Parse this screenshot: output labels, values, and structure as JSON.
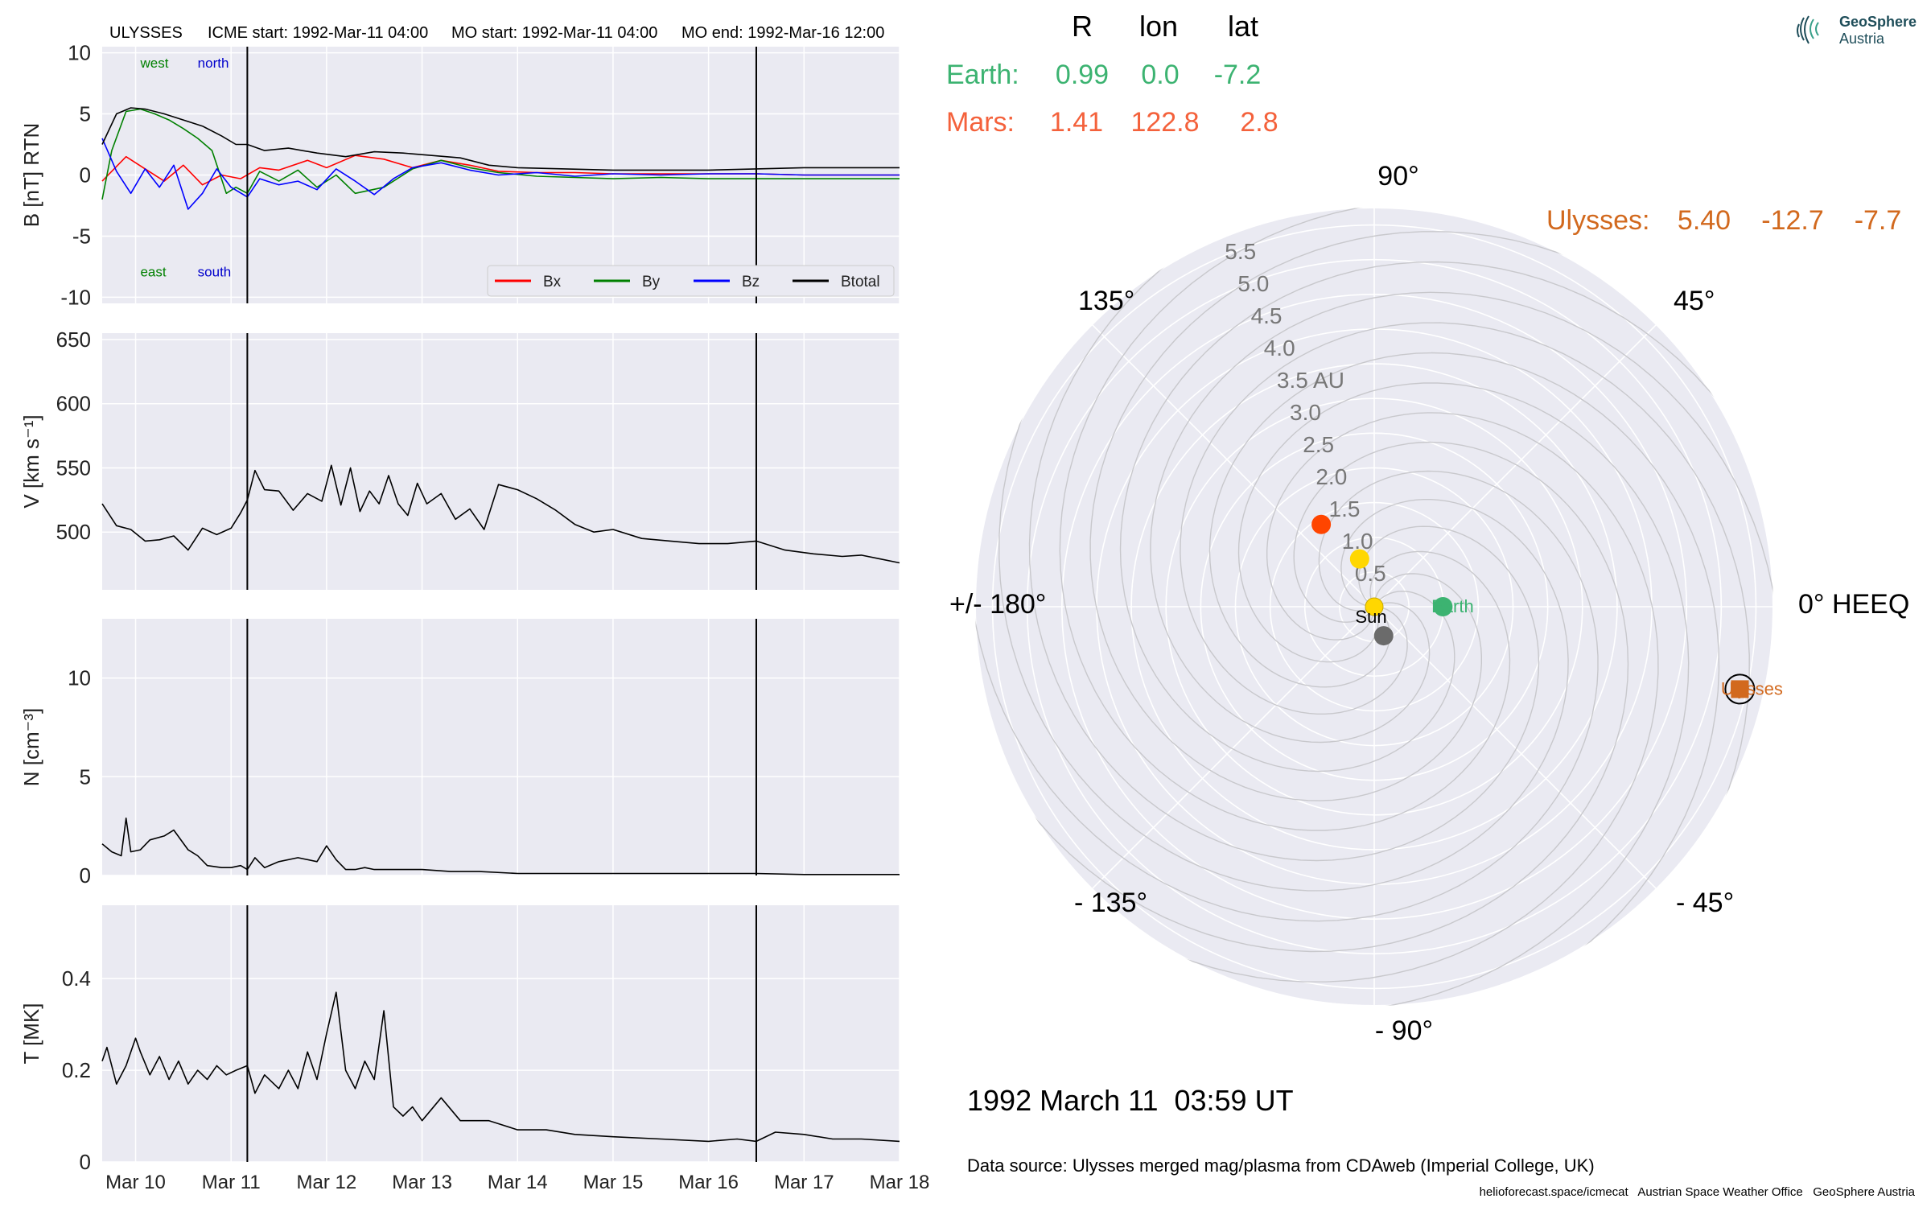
{
  "header": {
    "spacecraft": "ULYSSES",
    "icme_start": "ICME start: 1992-Mar-11 04:00",
    "mo_start": "MO start: 1992-Mar-11 04:00",
    "mo_end": "MO end: 1992-Mar-16 12:00"
  },
  "logo": {
    "line1": "GeoSphere",
    "line2": "Austria",
    "icon": "geosphere-logo-icon"
  },
  "table": {
    "col_r": "R",
    "col_lon": "lon",
    "col_lat": "lat",
    "rows": [
      {
        "name": "Earth:",
        "r": "0.99",
        "lon": "0.0",
        "lat": "-7.2",
        "color": "#3cb371"
      },
      {
        "name": "Mars:",
        "r": "1.41",
        "lon": "122.8",
        "lat": "2.8",
        "color": "#f4613b"
      }
    ],
    "ulysses": {
      "name": "Ulysses:",
      "r": "5.40",
      "lon": "-12.7",
      "lat": "-7.7",
      "color": "#d2691e"
    }
  },
  "date_text": "1992 March 11  03:59 UT",
  "source_text": "Data source: Ulysses merged mag/plasma from CDAweb (Imperial College, UK)",
  "footer_text": "helioforecast.space/icmecat   Austrian Space Weather Office   GeoSphere Austria",
  "chart_data": [
    {
      "type": "line",
      "ylabel": "B [nT] RTN",
      "ylim": [
        -10.5,
        10.5
      ],
      "yticks": [
        10,
        5,
        0,
        -5,
        -10
      ],
      "xlim": [
        9.65,
        18.0
      ],
      "xticks": [
        {
          "v": 10,
          "l": "Mar 10"
        },
        {
          "v": 11,
          "l": "Mar 11"
        },
        {
          "v": 12,
          "l": "Mar 12"
        },
        {
          "v": 13,
          "l": "Mar 13"
        },
        {
          "v": 14,
          "l": "Mar 14"
        },
        {
          "v": 15,
          "l": "Mar 15"
        },
        {
          "v": 16,
          "l": "Mar 16"
        },
        {
          "v": 17,
          "l": "Mar 17"
        },
        {
          "v": 18,
          "l": "Mar 18"
        }
      ],
      "vlines": [
        11.17,
        16.5
      ],
      "annotations": [
        {
          "text": "west",
          "color": "#008000",
          "x": 10.05,
          "y": 8.8
        },
        {
          "text": "north",
          "color": "#0000cc",
          "x": 10.65,
          "y": 8.8
        },
        {
          "text": "east",
          "color": "#008000",
          "x": 10.05,
          "y": -8.3
        },
        {
          "text": "south",
          "color": "#0000cc",
          "x": 10.65,
          "y": -8.3
        }
      ],
      "legend": "lower right",
      "series": [
        {
          "name": "Bx",
          "color": "#ff0000",
          "x": [
            9.65,
            9.9,
            10.1,
            10.3,
            10.5,
            10.7,
            10.9,
            11.1,
            11.3,
            11.5,
            11.8,
            12.0,
            12.3,
            12.6,
            12.9,
            13.2,
            13.5,
            13.8,
            14.2,
            14.6,
            15.0,
            15.5,
            16.0,
            16.5,
            17.0,
            17.5,
            18.0
          ],
          "y": [
            -0.5,
            1.5,
            0.5,
            -0.5,
            0.8,
            -0.8,
            0.0,
            -0.3,
            0.6,
            0.4,
            1.2,
            0.6,
            1.6,
            1.3,
            0.6,
            1.2,
            0.8,
            0.3,
            0.2,
            0.2,
            0.1,
            0.1,
            0.1,
            0.1,
            0.0,
            0.0,
            0.0
          ]
        },
        {
          "name": "By",
          "color": "#008000",
          "x": [
            9.65,
            9.75,
            9.9,
            10.05,
            10.2,
            10.35,
            10.5,
            10.65,
            10.8,
            10.95,
            11.05,
            11.17,
            11.3,
            11.5,
            11.7,
            11.9,
            12.1,
            12.3,
            12.6,
            12.9,
            13.2,
            13.5,
            13.8,
            14.2,
            14.6,
            15.0,
            15.5,
            16.0,
            16.5,
            17.0,
            17.5,
            18.0
          ],
          "y": [
            -2.0,
            2.0,
            5.2,
            5.4,
            5.0,
            4.5,
            3.8,
            3.0,
            2.0,
            -1.5,
            -1.0,
            -1.5,
            0.3,
            -0.5,
            0.4,
            -1.0,
            0.0,
            -1.5,
            -1.0,
            0.5,
            1.2,
            0.6,
            0.2,
            -0.1,
            -0.2,
            -0.3,
            -0.2,
            -0.3,
            -0.3,
            -0.3,
            -0.3,
            -0.3
          ]
        },
        {
          "name": "Bz",
          "color": "#0000ff",
          "x": [
            9.65,
            9.8,
            9.95,
            10.1,
            10.25,
            10.4,
            10.55,
            10.7,
            10.85,
            11.0,
            11.17,
            11.3,
            11.5,
            11.7,
            11.9,
            12.1,
            12.3,
            12.5,
            12.7,
            12.9,
            13.2,
            13.5,
            13.8,
            14.2,
            14.6,
            15.0,
            15.5,
            16.0,
            16.5,
            17.0,
            17.5,
            18.0
          ],
          "y": [
            3.0,
            0.3,
            -1.5,
            0.5,
            -1.0,
            0.8,
            -2.8,
            -1.5,
            0.5,
            -1.0,
            -1.8,
            -0.3,
            -0.8,
            -0.5,
            -1.2,
            0.5,
            -0.5,
            -1.6,
            -0.3,
            0.6,
            1.0,
            0.4,
            0.0,
            0.2,
            -0.1,
            0.1,
            0.0,
            0.1,
            0.1,
            0.0,
            0.0,
            0.0
          ]
        },
        {
          "name": "Btotal",
          "color": "#000000",
          "x": [
            9.65,
            9.8,
            9.95,
            10.1,
            10.3,
            10.5,
            10.7,
            10.9,
            11.05,
            11.17,
            11.35,
            11.6,
            11.9,
            12.2,
            12.5,
            12.8,
            13.1,
            13.4,
            13.7,
            14.0,
            14.5,
            15.0,
            15.5,
            16.0,
            16.5,
            17.0,
            17.5,
            18.0
          ],
          "y": [
            2.5,
            5.0,
            5.5,
            5.4,
            5.0,
            4.5,
            4.0,
            3.2,
            2.5,
            2.5,
            2.0,
            2.2,
            1.8,
            1.5,
            1.9,
            1.8,
            1.6,
            1.4,
            0.8,
            0.6,
            0.5,
            0.4,
            0.4,
            0.4,
            0.5,
            0.6,
            0.6,
            0.6
          ]
        }
      ]
    },
    {
      "type": "line",
      "ylabel": "V [km s⁻¹]",
      "ylim": [
        455,
        655
      ],
      "yticks": [
        650,
        600,
        550,
        500
      ],
      "xlim": [
        9.65,
        18.0
      ],
      "vlines": [
        11.17,
        16.5
      ],
      "series": [
        {
          "name": "",
          "color": "#000000",
          "x": [
            9.65,
            9.8,
            9.95,
            10.1,
            10.25,
            10.4,
            10.55,
            10.7,
            10.85,
            11.0,
            11.1,
            11.17,
            11.25,
            11.35,
            11.5,
            11.65,
            11.8,
            11.95,
            12.05,
            12.15,
            12.25,
            12.35,
            12.45,
            12.55,
            12.65,
            12.75,
            12.85,
            12.95,
            13.05,
            13.2,
            13.35,
            13.5,
            13.65,
            13.8,
            14.0,
            14.2,
            14.4,
            14.6,
            14.8,
            15.0,
            15.3,
            15.6,
            15.9,
            16.2,
            16.5,
            16.8,
            17.1,
            17.4,
            17.6,
            17.8,
            18.0
          ],
          "y": [
            522,
            505,
            502,
            493,
            494,
            497,
            486,
            503,
            498,
            503,
            515,
            525,
            548,
            533,
            532,
            517,
            530,
            524,
            552,
            521,
            550,
            516,
            532,
            522,
            544,
            522,
            513,
            538,
            522,
            530,
            510,
            518,
            502,
            537,
            533,
            526,
            517,
            506,
            500,
            502,
            495,
            493,
            491,
            491,
            493,
            486,
            483,
            481,
            482,
            479,
            476
          ]
        }
      ]
    },
    {
      "type": "line",
      "ylabel": "N [cm⁻³]",
      "ylim": [
        0,
        13
      ],
      "yticks": [
        10,
        5,
        0
      ],
      "xlim": [
        9.65,
        18.0
      ],
      "vlines": [
        11.17,
        16.5
      ],
      "series": [
        {
          "name": "",
          "color": "#000000",
          "x": [
            9.65,
            9.75,
            9.85,
            9.9,
            9.95,
            10.05,
            10.15,
            10.3,
            10.4,
            10.55,
            10.65,
            10.75,
            10.9,
            11.0,
            11.1,
            11.17,
            11.25,
            11.35,
            11.5,
            11.7,
            11.9,
            12.0,
            12.1,
            12.2,
            12.3,
            12.4,
            12.5,
            12.7,
            13.0,
            13.3,
            13.6,
            14.0,
            14.5,
            15.0,
            15.5,
            16.0,
            16.5,
            17.0,
            17.5,
            18.0
          ],
          "y": [
            1.6,
            1.2,
            1.0,
            2.9,
            1.2,
            1.3,
            1.8,
            2.0,
            2.3,
            1.3,
            1.0,
            0.5,
            0.4,
            0.4,
            0.5,
            0.3,
            0.9,
            0.4,
            0.7,
            0.9,
            0.7,
            1.5,
            0.8,
            0.3,
            0.3,
            0.4,
            0.3,
            0.3,
            0.3,
            0.2,
            0.2,
            0.1,
            0.1,
            0.1,
            0.1,
            0.1,
            0.1,
            0.05,
            0.05,
            0.05
          ]
        }
      ]
    },
    {
      "type": "line",
      "ylabel": "T [MK]",
      "ylim": [
        0,
        0.56
      ],
      "yticks": [
        0.4,
        0.2,
        0.0
      ],
      "xlim": [
        9.65,
        18.0
      ],
      "vlines": [
        11.17,
        16.5
      ],
      "xticks": [
        {
          "v": 10,
          "l": "Mar 10"
        },
        {
          "v": 11,
          "l": "Mar 11"
        },
        {
          "v": 12,
          "l": "Mar 12"
        },
        {
          "v": 13,
          "l": "Mar 13"
        },
        {
          "v": 14,
          "l": "Mar 14"
        },
        {
          "v": 15,
          "l": "Mar 15"
        },
        {
          "v": 16,
          "l": "Mar 16"
        },
        {
          "v": 17,
          "l": "Mar 17"
        },
        {
          "v": 18,
          "l": "Mar 18"
        }
      ],
      "series": [
        {
          "name": "",
          "color": "#000000",
          "x": [
            9.65,
            9.7,
            9.8,
            9.9,
            10.0,
            10.05,
            10.15,
            10.25,
            10.35,
            10.45,
            10.55,
            10.65,
            10.75,
            10.85,
            10.95,
            11.05,
            11.17,
            11.25,
            11.35,
            11.5,
            11.6,
            11.7,
            11.8,
            11.9,
            12.0,
            12.1,
            12.2,
            12.3,
            12.4,
            12.5,
            12.6,
            12.7,
            12.8,
            12.9,
            13.0,
            13.2,
            13.4,
            13.7,
            14.0,
            14.3,
            14.6,
            15.0,
            15.5,
            16.0,
            16.3,
            16.5,
            16.7,
            17.0,
            17.3,
            17.6,
            18.0
          ],
          "y": [
            0.22,
            0.25,
            0.17,
            0.21,
            0.27,
            0.24,
            0.19,
            0.23,
            0.18,
            0.22,
            0.17,
            0.2,
            0.18,
            0.21,
            0.19,
            0.2,
            0.21,
            0.15,
            0.19,
            0.16,
            0.2,
            0.16,
            0.24,
            0.18,
            0.28,
            0.37,
            0.2,
            0.16,
            0.22,
            0.18,
            0.33,
            0.12,
            0.1,
            0.12,
            0.09,
            0.14,
            0.09,
            0.09,
            0.07,
            0.07,
            0.06,
            0.055,
            0.05,
            0.045,
            0.05,
            0.045,
            0.065,
            0.06,
            0.05,
            0.05,
            0.045
          ]
        }
      ]
    },
    {
      "type": "scatter",
      "projection": "polar",
      "theta_labels": [
        {
          "angle": 0,
          "text": "0° HEEQ"
        },
        {
          "angle": 45,
          "text": "45°"
        },
        {
          "angle": 90,
          "text": "90°"
        },
        {
          "angle": 135,
          "text": "135°"
        },
        {
          "angle": 180,
          "text": "+/- 180°"
        },
        {
          "angle": -135,
          "text": "- 135°"
        },
        {
          "angle": -90,
          "text": "- 90°"
        },
        {
          "angle": -45,
          "text": "- 45°"
        }
      ],
      "rlim": [
        0,
        5.75
      ],
      "rticks": [
        0.5,
        1.0,
        1.5,
        2.0,
        2.5,
        3.0,
        3.5,
        4.0,
        4.5,
        5.0,
        5.5
      ],
      "rtick_labels": [
        "0.5",
        "1.0",
        "1.5",
        "2.0",
        "2.5",
        "3.0",
        "3.5 AU",
        "4.0",
        "4.5",
        "5.0",
        "5.5"
      ],
      "rlabel_angle": 112,
      "points": [
        {
          "name": "Sun",
          "label": "Sun",
          "r": 0.0,
          "lon": 0.0,
          "color": "#ffd700",
          "marker": "circle"
        },
        {
          "name": "Mercury",
          "label": "",
          "r": 0.44,
          "lon": -72,
          "color": "#6b6b6b",
          "marker": "circle"
        },
        {
          "name": "Venus",
          "label": "",
          "r": 0.72,
          "lon": 107,
          "color": "#ffd700",
          "marker": "circle"
        },
        {
          "name": "Earth",
          "label": "Earth",
          "r": 0.99,
          "lon": 0.0,
          "color": "#3cb371",
          "marker": "circle"
        },
        {
          "name": "Mars",
          "label": "",
          "r": 1.41,
          "lon": 122.8,
          "color": "#ff4500",
          "marker": "circle"
        },
        {
          "name": "Ulysses",
          "label": "Ulysses",
          "r": 5.4,
          "lon": -12.7,
          "color": "#d2691e",
          "marker": "square"
        }
      ]
    }
  ]
}
